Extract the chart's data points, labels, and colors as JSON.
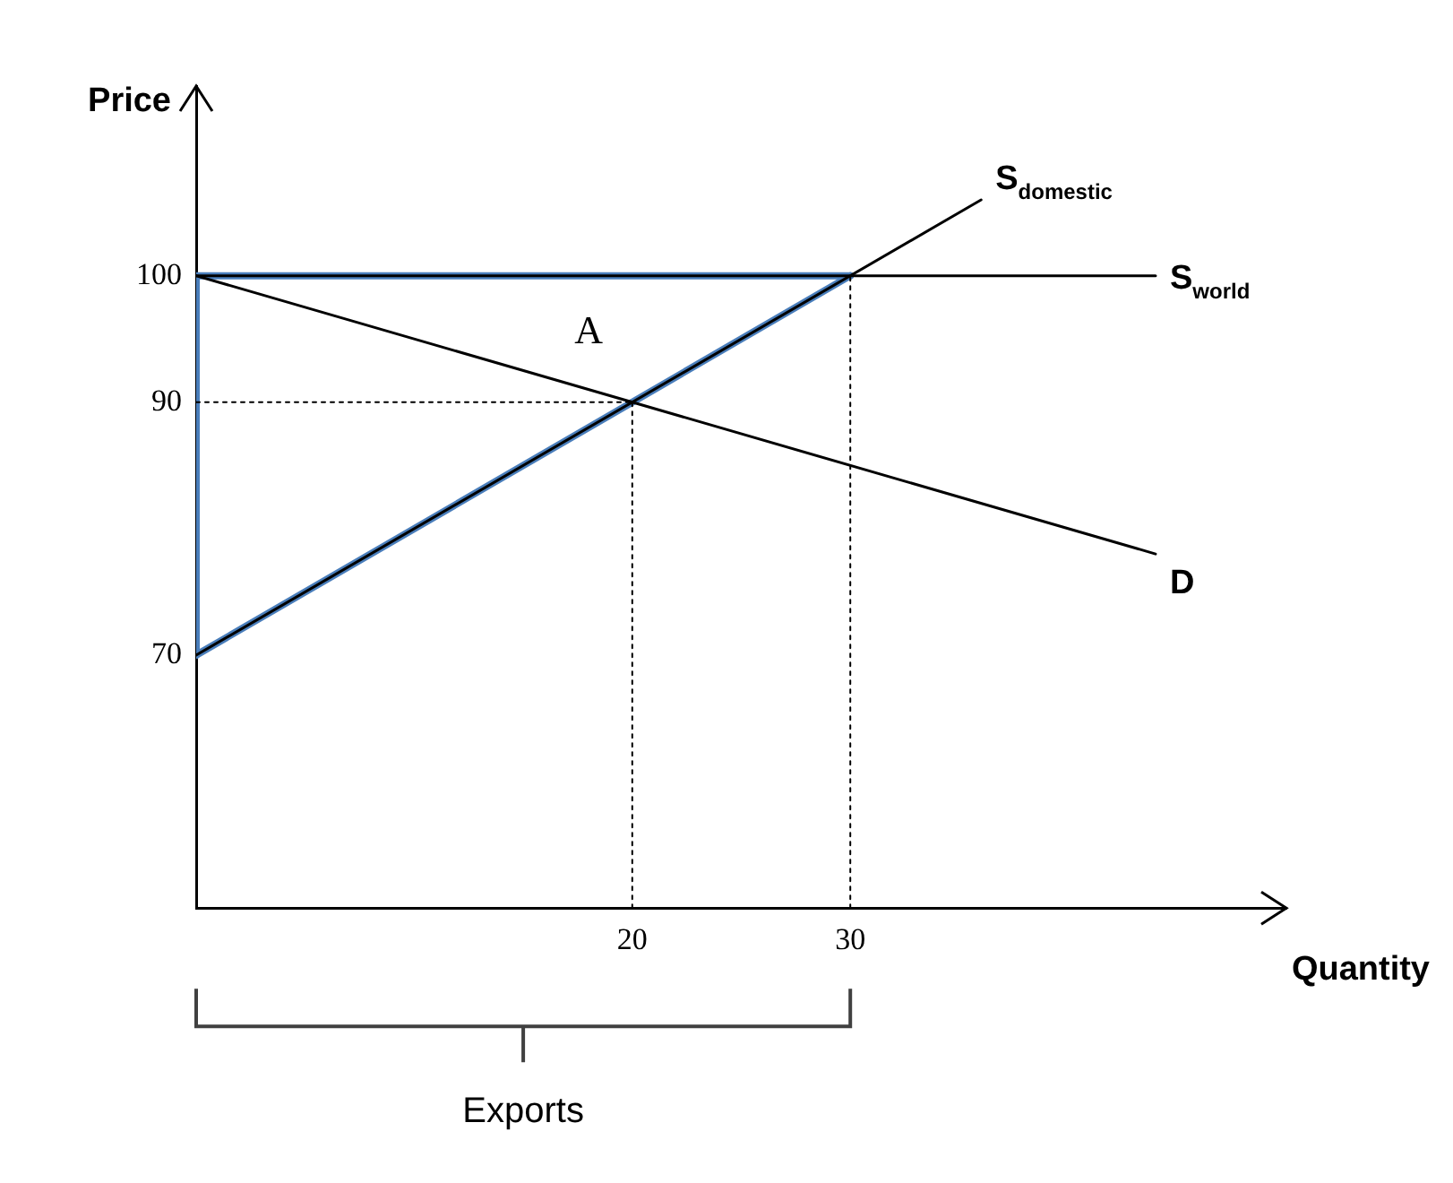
{
  "chart_data": {
    "type": "line",
    "xlabel": "Quantity",
    "ylabel": "Price",
    "xlim": [
      0,
      50
    ],
    "ylim": [
      50,
      115
    ],
    "xticks": [
      20,
      30
    ],
    "yticks": [
      70,
      90,
      100
    ],
    "series": [
      {
        "type": "line",
        "name": "S$_{domestic}$",
        "color": "#000000",
        "x": [
          0,
          36
        ],
        "values": [
          70,
          106
        ]
      },
      {
        "type": "line",
        "name": "S$_{world}$",
        "color": "#000000",
        "x": [
          0,
          44
        ],
        "values": [
          100,
          100
        ]
      },
      {
        "type": "line",
        "name": "D",
        "color": "#000000",
        "x": [
          0,
          44
        ],
        "values": [
          100,
          78
        ]
      },
      {
        "type": "line",
        "color": "#000000",
        "line_style": "dotted",
        "x": [
          0,
          20
        ],
        "values": [
          90,
          90
        ]
      },
      {
        "type": "line",
        "color": "#000000",
        "line_style": "dotted",
        "x": [
          20,
          20
        ],
        "values": [
          50,
          90
        ]
      },
      {
        "type": "line",
        "color": "#000000",
        "line_style": "dotted",
        "x": [
          30,
          30
        ],
        "values": [
          50,
          100
        ]
      },
      {
        "type": "line",
        "color": "#4a7ebb",
        "x": [
          0,
          0
        ],
        "values": [
          70,
          100
        ]
      },
      {
        "type": "line",
        "color": "#4a7ebb",
        "x": [
          0,
          30
        ],
        "values": [
          100,
          100
        ]
      },
      {
        "type": "line",
        "color": "#4a7ebb",
        "x": [
          0,
          30
        ],
        "values": [
          70,
          100
        ]
      }
    ],
    "annotations": [
      "A",
      "Exports"
    ]
  }
}
